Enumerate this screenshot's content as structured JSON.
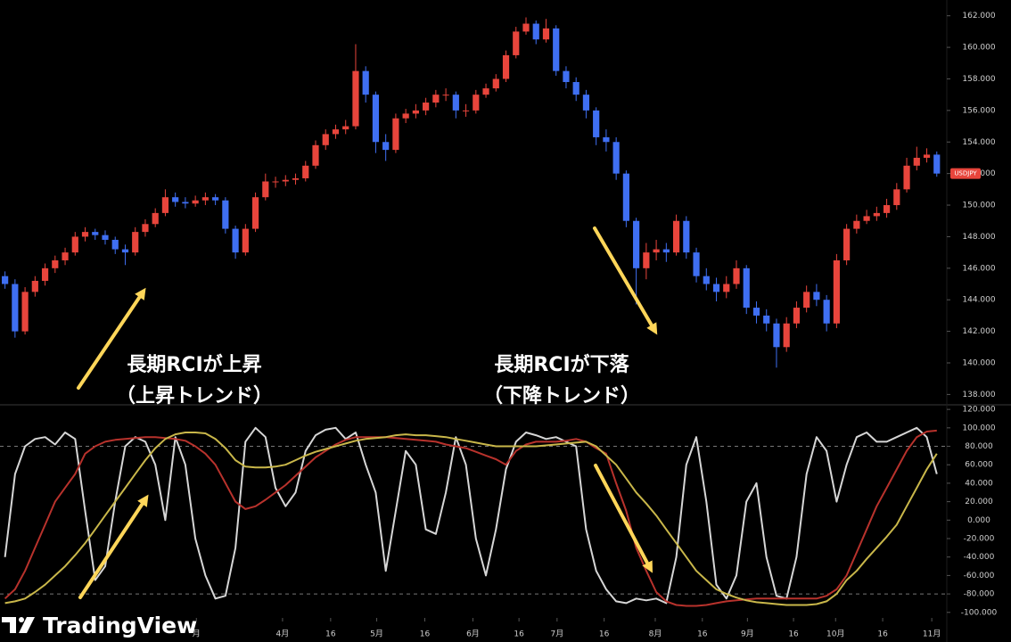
{
  "chart_data": [
    {
      "type": "candlestick",
      "name": "USDJPY",
      "up_color": "#e8453c",
      "down_color": "#3f6ff2",
      "xlim": [
        -0.5,
        94
      ],
      "ylim": [
        137.4,
        163
      ],
      "yticks": [
        {
          "value": 138,
          "label": "138.000"
        },
        {
          "value": 140,
          "label": "140.000"
        },
        {
          "value": 142,
          "label": "142.000"
        },
        {
          "value": 144,
          "label": "144.000"
        },
        {
          "value": 146,
          "label": "146.000"
        },
        {
          "value": 148,
          "label": "148.000"
        },
        {
          "value": 150,
          "label": "150.000"
        },
        {
          "value": 152,
          "label": "152.000"
        },
        {
          "value": 154,
          "label": "154.000"
        },
        {
          "value": 156,
          "label": "156.000"
        },
        {
          "value": 158,
          "label": "158.000"
        },
        {
          "value": 160,
          "label": "160.000"
        },
        {
          "value": 162,
          "label": "162.000"
        }
      ],
      "annotations": [
        "長期RCIが上昇",
        "（上昇トレンド）",
        "長期RCIが下落",
        "（下降トレンド）"
      ],
      "open": [
        145.5,
        145,
        142,
        144.5,
        145.2,
        146,
        146.5,
        147,
        148,
        148.3,
        148.1,
        147.8,
        147.2,
        147,
        148.3,
        148.8,
        149.5,
        150.5,
        150.2,
        150.1,
        150.3,
        150.5,
        150.3,
        148.5,
        147,
        148.5,
        150.5,
        151.5,
        151.5,
        151.6,
        151.7,
        152.5,
        153.8,
        154.5,
        154.8,
        155,
        158.5,
        157,
        154,
        153.5,
        155.5,
        155.8,
        156,
        156.5,
        157,
        157,
        156,
        156,
        157,
        157.4,
        158,
        159.5,
        161,
        161.5,
        160.5,
        161.2,
        158.5,
        157.8,
        157,
        156,
        154.3,
        154,
        152,
        149,
        146,
        147,
        147.2,
        147,
        149,
        147,
        145.5,
        145,
        144.5,
        145,
        146,
        143.5,
        143,
        142.5,
        141,
        142.5,
        143.5,
        144.5,
        144,
        142.5,
        146.5,
        148.5,
        149,
        149.3,
        149.5,
        150,
        151,
        152.5,
        153,
        153.2
      ],
      "high": [
        145.8,
        145.3,
        144.8,
        145.5,
        146.3,
        146.8,
        147.3,
        148.3,
        148.6,
        148.5,
        148.4,
        148,
        147.5,
        148.6,
        149.1,
        149.8,
        151,
        150.8,
        150.5,
        150.6,
        150.8,
        150.7,
        150.5,
        148.7,
        148.8,
        150.8,
        152,
        151.8,
        151.9,
        152,
        152.8,
        154.1,
        154.8,
        155.1,
        155.4,
        160.2,
        158.8,
        157.2,
        154.5,
        155.8,
        156.1,
        156.4,
        156.8,
        157.3,
        157.4,
        157.2,
        156.4,
        157.3,
        157.7,
        158.3,
        159.8,
        161.3,
        161.9,
        161.7,
        161.8,
        161.4,
        158.8,
        158.1,
        157.3,
        156.2,
        154.8,
        154.3,
        152.2,
        149.2,
        147.6,
        147.8,
        147.6,
        149.4,
        149.3,
        147.3,
        146,
        145.4,
        145.5,
        146.5,
        146.2,
        143.9,
        143.4,
        142.8,
        142.9,
        143.9,
        144.9,
        145,
        144.3,
        146.9,
        148.8,
        149.4,
        149.7,
        149.9,
        150.4,
        151.4,
        153,
        153.7,
        153.6,
        153.4
      ],
      "low": [
        144.7,
        141.6,
        141.8,
        144.2,
        144.9,
        145.7,
        146.2,
        146.8,
        147.7,
        147.8,
        147.5,
        146.9,
        146.2,
        146.8,
        148,
        148.6,
        149.3,
        149.9,
        149.8,
        149.9,
        150,
        150,
        148.2,
        146.6,
        146.8,
        148.3,
        150.3,
        151.1,
        151.2,
        151.3,
        151.5,
        152.3,
        153.5,
        154.2,
        154.5,
        154.8,
        156.5,
        153.3,
        152.8,
        153.3,
        155.2,
        155.5,
        155.7,
        156.2,
        156.6,
        155.5,
        155.6,
        155.8,
        156.8,
        157.2,
        157.8,
        159.3,
        160.8,
        160.2,
        160.3,
        158.2,
        157.4,
        156.6,
        155.5,
        153.8,
        153.4,
        151.6,
        148.6,
        143.7,
        145.3,
        146.5,
        146.4,
        146.8,
        146.6,
        145.1,
        144.6,
        143.9,
        144.1,
        144.7,
        143.1,
        142.5,
        142,
        139.7,
        140.7,
        142.2,
        143.2,
        143.6,
        142,
        142.2,
        146.2,
        148.2,
        148.8,
        149,
        149.2,
        149.7,
        150.8,
        152.2,
        152.7,
        151.8
      ],
      "close": [
        145,
        142,
        144.5,
        145.2,
        146,
        146.5,
        147,
        148,
        148.3,
        148.1,
        147.8,
        147.2,
        147,
        148.3,
        148.8,
        149.5,
        150.5,
        150.2,
        150.1,
        150.3,
        150.5,
        150.3,
        148.5,
        147,
        148.5,
        150.5,
        151.5,
        151.5,
        151.6,
        151.7,
        152.5,
        153.8,
        154.5,
        154.8,
        155,
        158.5,
        157,
        154,
        153.5,
        155.5,
        155.8,
        156,
        156.5,
        157,
        157,
        156,
        156,
        157,
        157.4,
        158,
        159.5,
        161,
        161.5,
        160.5,
        161.2,
        158.5,
        157.8,
        157,
        156,
        154.3,
        154,
        152,
        149,
        146,
        147,
        147.2,
        147,
        149,
        147,
        145.5,
        145,
        144.5,
        145,
        146,
        143.5,
        143,
        142.5,
        141,
        142.5,
        143.5,
        144.5,
        144,
        142.5,
        146.5,
        148.5,
        149,
        149.3,
        149.5,
        150,
        151,
        152.5,
        153,
        153.2,
        152
      ]
    },
    {
      "type": "line",
      "watermark": "TradingView",
      "xlim": [
        -0.5,
        94
      ],
      "ylim": [
        -106,
        124
      ],
      "levels": [
        80,
        -80
      ],
      "yticks": [
        {
          "value": -100,
          "label": "-100.000"
        },
        {
          "value": -80,
          "label": "-80.000"
        },
        {
          "value": -60,
          "label": "-60.000"
        },
        {
          "value": -40,
          "label": "-40.000"
        },
        {
          "value": -20,
          "label": "-20.000"
        },
        {
          "value": 0,
          "label": "0.000"
        },
        {
          "value": 20,
          "label": "20.000"
        },
        {
          "value": 40,
          "label": "40.000"
        },
        {
          "value": 60,
          "label": "60.000"
        },
        {
          "value": 80,
          "label": "80.000"
        },
        {
          "value": 100,
          "label": "100.000"
        },
        {
          "value": 120,
          "label": "120.000"
        }
      ],
      "xticks": [
        {
          "value": 19.1,
          "label": "月"
        },
        {
          "value": 27.7,
          "label": "4月"
        },
        {
          "value": 32.5,
          "label": "16"
        },
        {
          "value": 37.1,
          "label": "5月"
        },
        {
          "value": 41.9,
          "label": "16"
        },
        {
          "value": 46.7,
          "label": "6月"
        },
        {
          "value": 51.3,
          "label": "16"
        },
        {
          "value": 55.1,
          "label": "7月"
        },
        {
          "value": 59.8,
          "label": "16"
        },
        {
          "value": 64.9,
          "label": "8月"
        },
        {
          "value": 69.6,
          "label": "16"
        },
        {
          "value": 74.1,
          "label": "9月"
        },
        {
          "value": 78.7,
          "label": "16"
        },
        {
          "value": 82.9,
          "label": "10月"
        },
        {
          "value": 87.6,
          "label": "16"
        },
        {
          "value": 92.5,
          "label": "11月"
        }
      ],
      "series": [
        {
          "color": "#d6d6d6",
          "values": [
            -40,
            50,
            80,
            88,
            90,
            82,
            95,
            88,
            10,
            -65,
            -50,
            20,
            80,
            90,
            85,
            60,
            0,
            90,
            60,
            -20,
            -60,
            -85,
            -82,
            -30,
            85,
            100,
            90,
            35,
            15,
            30,
            75,
            92,
            98,
            100,
            88,
            95,
            60,
            30,
            -55,
            10,
            75,
            60,
            -10,
            -15,
            30,
            90,
            60,
            -20,
            -60,
            -10,
            55,
            85,
            95,
            92,
            88,
            90,
            85,
            80,
            -10,
            -55,
            -75,
            -88,
            -90,
            -85,
            -87,
            -85,
            -90,
            -40,
            60,
            90,
            20,
            -70,
            -85,
            -60,
            20,
            40,
            -40,
            -82,
            -85,
            -40,
            50,
            90,
            75,
            20,
            60,
            90,
            95,
            85,
            85,
            90,
            95,
            100,
            90,
            50
          ]
        },
        {
          "color": "#b8322c",
          "values": [
            -85,
            -75,
            -55,
            -30,
            -5,
            20,
            35,
            50,
            72,
            80,
            85,
            87,
            88,
            89,
            90,
            90,
            89,
            88,
            86,
            80,
            72,
            60,
            40,
            20,
            12,
            15,
            22,
            30,
            38,
            48,
            58,
            68,
            75,
            82,
            87,
            90,
            90,
            90,
            90,
            89,
            88,
            87,
            86,
            85,
            82,
            80,
            78,
            74,
            70,
            66,
            60,
            75,
            82,
            85,
            85,
            85,
            86,
            88,
            85,
            78,
            72,
            40,
            10,
            -30,
            -55,
            -78,
            -88,
            -92,
            -93,
            -93,
            -92,
            -90,
            -88,
            -87,
            -86,
            -85,
            -85,
            -85,
            -85,
            -85,
            -85,
            -85,
            -82,
            -75,
            -60,
            -35,
            -10,
            15,
            35,
            55,
            75,
            90,
            96,
            97
          ]
        },
        {
          "color": "#c9b74a",
          "values": [
            -90,
            -88,
            -85,
            -78,
            -70,
            -60,
            -50,
            -38,
            -25,
            -10,
            5,
            20,
            35,
            50,
            65,
            78,
            88,
            93,
            95,
            95,
            94,
            88,
            78,
            65,
            58,
            57,
            57,
            58,
            60,
            65,
            70,
            74,
            77,
            80,
            83,
            86,
            88,
            89,
            90,
            92,
            93,
            92,
            92,
            91,
            90,
            88,
            86,
            84,
            82,
            80,
            80,
            80,
            80,
            80,
            81,
            82,
            83,
            84,
            85,
            80,
            70,
            60,
            45,
            30,
            18,
            5,
            -10,
            -25,
            -40,
            -55,
            -65,
            -75,
            -80,
            -84,
            -87,
            -89,
            -90,
            -91,
            -92,
            -92,
            -92,
            -91,
            -88,
            -80,
            -65,
            -55,
            -42,
            -30,
            -18,
            -5,
            15,
            35,
            55,
            72
          ]
        }
      ]
    }
  ]
}
